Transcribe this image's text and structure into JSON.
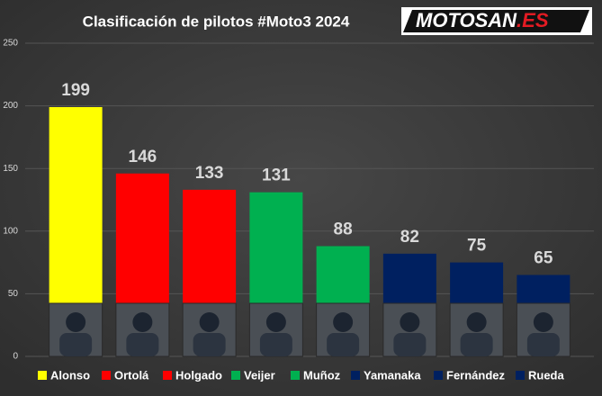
{
  "chart_data": {
    "type": "bar",
    "title": "Clasificación de pilotos #Moto3 2024",
    "logo": [
      "MOTOSAN",
      ".ES"
    ],
    "categories": [
      "Alonso",
      "Ortolá",
      "Holgado",
      "Veijer",
      "Muñoz",
      "Yamanaka",
      "Fernández",
      "Rueda"
    ],
    "values": [
      199,
      146,
      133,
      131,
      88,
      82,
      75,
      65
    ],
    "colors": [
      "#ffff00",
      "#ff0000",
      "#ff0000",
      "#00b050",
      "#00b050",
      "#002060",
      "#002060",
      "#002060"
    ],
    "ylim": [
      0,
      250
    ],
    "yticks": [
      0,
      50,
      100,
      150,
      200,
      250
    ],
    "grid": true,
    "legend": "bottom"
  }
}
